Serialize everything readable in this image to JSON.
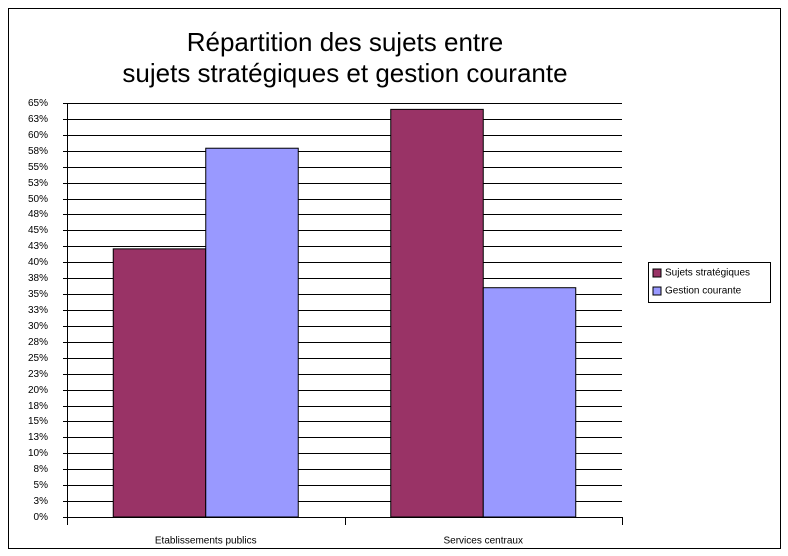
{
  "chart_data": {
    "type": "bar",
    "title": [
      "Répartition des sujets entre",
      "sujets stratégiques et gestion courante"
    ],
    "categories": [
      "Etablissements publics",
      "Services centraux"
    ],
    "series": [
      {
        "name": "Sujets stratégiques",
        "color": "#993366",
        "values": [
          42.1,
          64
        ]
      },
      {
        "name": "Gestion courante",
        "color": "#9999ff",
        "values": [
          57.9,
          36
        ]
      }
    ],
    "ylim": [
      0,
      65
    ],
    "yticks": [
      {
        "value": 0,
        "label": "0%"
      },
      {
        "value": 2.5,
        "label": "3%"
      },
      {
        "value": 5,
        "label": "5%"
      },
      {
        "value": 7.5,
        "label": "8%"
      },
      {
        "value": 10,
        "label": "10%"
      },
      {
        "value": 12.5,
        "label": "13%"
      },
      {
        "value": 15,
        "label": "15%"
      },
      {
        "value": 17.5,
        "label": "18%"
      },
      {
        "value": 20,
        "label": "20%"
      },
      {
        "value": 22.5,
        "label": "23%"
      },
      {
        "value": 25,
        "label": "25%"
      },
      {
        "value": 27.5,
        "label": "28%"
      },
      {
        "value": 30,
        "label": "30%"
      },
      {
        "value": 32.5,
        "label": "33%"
      },
      {
        "value": 35,
        "label": "35%"
      },
      {
        "value": 37.5,
        "label": "38%"
      },
      {
        "value": 40,
        "label": "40%"
      },
      {
        "value": 42.5,
        "label": "43%"
      },
      {
        "value": 45,
        "label": "45%"
      },
      {
        "value": 47.5,
        "label": "48%"
      },
      {
        "value": 50,
        "label": "50%"
      },
      {
        "value": 52.5,
        "label": "53%"
      },
      {
        "value": 55,
        "label": "55%"
      },
      {
        "value": 57.5,
        "label": "58%"
      },
      {
        "value": 60,
        "label": "60%"
      },
      {
        "value": 62.5,
        "label": "63%"
      },
      {
        "value": 65,
        "label": "65%"
      }
    ],
    "grid": true,
    "legend": "right"
  }
}
